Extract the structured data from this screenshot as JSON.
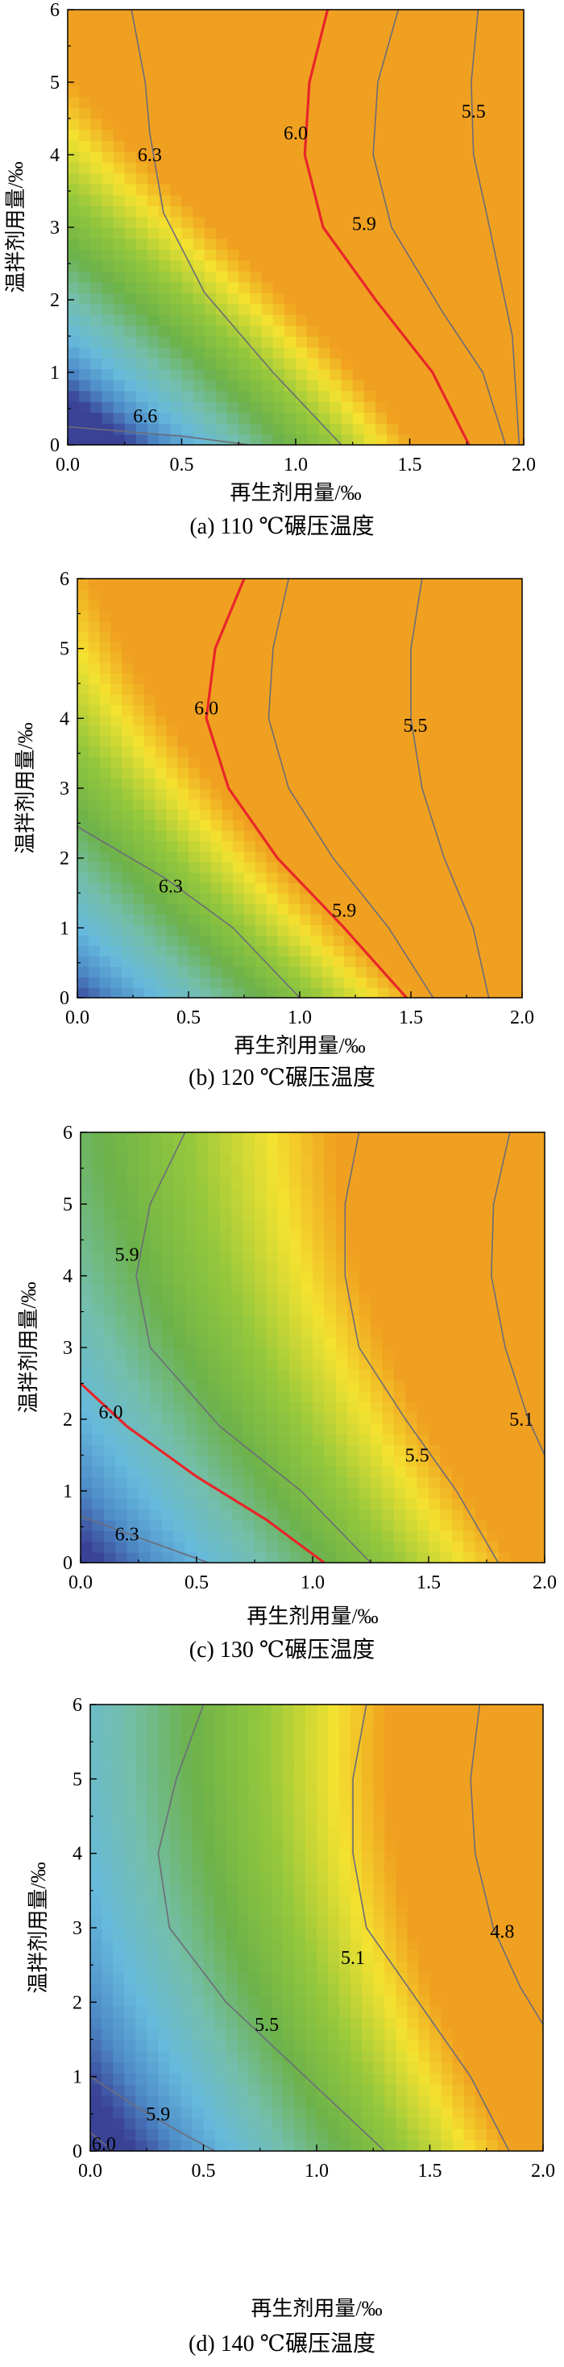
{
  "chart_data": [
    {
      "type": "contour",
      "title": "(a) 110 ℃碾压温度",
      "xlabel": "再生剂用量/‰",
      "ylabel": "温拌剂用量/‰",
      "xlim": [
        0,
        2
      ],
      "ylim": [
        0,
        6
      ],
      "xticks": [
        "0.0",
        "0.5",
        "1.0",
        "1.5",
        "2.0"
      ],
      "yticks": [
        "0",
        "1",
        "2",
        "3",
        "4",
        "5",
        "6"
      ],
      "value_range": [
        5.4,
        6.85
      ],
      "highlight_level": "6.0",
      "contours": [
        {
          "level": "6.6",
          "points": [
            [
              0.0,
              0.25
            ],
            [
              0.5,
              0.12
            ],
            [
              0.8,
              0.0
            ]
          ],
          "label_at": [
            0.34,
            0.4
          ]
        },
        {
          "level": "6.3",
          "points": [
            [
              0.28,
              6.0
            ],
            [
              0.34,
              5.0
            ],
            [
              0.36,
              4.3
            ],
            [
              0.42,
              3.2
            ],
            [
              0.6,
              2.1
            ],
            [
              0.9,
              1.0
            ],
            [
              1.2,
              0.0
            ]
          ],
          "label_at": [
            0.36,
            4.0
          ]
        },
        {
          "level": "6.0",
          "points": [
            [
              1.14,
              6.0
            ],
            [
              1.06,
              5.0
            ],
            [
              1.04,
              4.0
            ],
            [
              1.12,
              3.0
            ],
            [
              1.35,
              2.0
            ],
            [
              1.6,
              1.0
            ],
            [
              1.76,
              0.0
            ]
          ],
          "label_at": [
            1.0,
            4.3
          ]
        },
        {
          "level": "5.9",
          "points": [
            [
              1.45,
              6.0
            ],
            [
              1.36,
              5.0
            ],
            [
              1.34,
              4.0
            ],
            [
              1.42,
              3.0
            ],
            [
              1.65,
              1.8
            ],
            [
              1.82,
              1.0
            ],
            [
              1.92,
              0.0
            ]
          ],
          "label_at": [
            1.3,
            3.05
          ]
        },
        {
          "level": "5.5",
          "points": [
            [
              1.8,
              6.0
            ],
            [
              1.77,
              5.0
            ],
            [
              1.78,
              4.0
            ],
            [
              1.85,
              3.0
            ],
            [
              1.95,
              1.5
            ],
            [
              1.98,
              0.0
            ]
          ],
          "label_at": [
            1.78,
            4.6
          ]
        }
      ]
    },
    {
      "type": "contour",
      "title": "(b) 120 ℃碾压温度",
      "xlabel": "再生剂用量/‰",
      "ylabel": "温拌剂用量/‰",
      "xlim": [
        0,
        2
      ],
      "ylim": [
        0,
        6
      ],
      "xticks": [
        "0.0",
        "0.5",
        "1.0",
        "1.5",
        "2.0"
      ],
      "yticks": [
        "0",
        "1",
        "2",
        "3",
        "4",
        "5",
        "6"
      ],
      "value_range": [
        5.4,
        6.85
      ],
      "highlight_level": "6.0",
      "contours": [
        {
          "level": "6.3",
          "points": [
            [
              0.0,
              2.45
            ],
            [
              0.4,
              1.7
            ],
            [
              0.7,
              1.0
            ],
            [
              1.0,
              0.0
            ]
          ],
          "label_at": [
            0.42,
            1.6
          ]
        },
        {
          "level": "6.0",
          "points": [
            [
              0.75,
              6.0
            ],
            [
              0.62,
              5.0
            ],
            [
              0.58,
              4.0
            ],
            [
              0.68,
              3.0
            ],
            [
              0.9,
              2.0
            ],
            [
              1.2,
              1.0
            ],
            [
              1.48,
              0.0
            ]
          ],
          "label_at": [
            0.58,
            4.15
          ]
        },
        {
          "level": "5.9",
          "points": [
            [
              0.95,
              6.0
            ],
            [
              0.88,
              5.0
            ],
            [
              0.86,
              4.0
            ],
            [
              0.95,
              3.0
            ],
            [
              1.15,
              2.0
            ],
            [
              1.4,
              1.0
            ],
            [
              1.6,
              0.0
            ]
          ],
          "label_at": [
            1.2,
            1.25
          ]
        },
        {
          "level": "5.5",
          "points": [
            [
              1.55,
              6.0
            ],
            [
              1.5,
              5.0
            ],
            [
              1.5,
              4.0
            ],
            [
              1.55,
              3.0
            ],
            [
              1.65,
              2.0
            ],
            [
              1.78,
              1.0
            ],
            [
              1.85,
              0.0
            ]
          ],
          "label_at": [
            1.52,
            3.9
          ]
        }
      ]
    },
    {
      "type": "contour",
      "title": "(c) 130 ℃碾压温度",
      "xlabel": "再生剂用量/‰",
      "ylabel": "温拌剂用量/‰",
      "xlim": [
        0,
        2
      ],
      "ylim": [
        0,
        6
      ],
      "xticks": [
        "0.0",
        "0.5",
        "1.0",
        "1.5",
        "2.0"
      ],
      "yticks": [
        "0",
        "1",
        "2",
        "3",
        "4",
        "5",
        "6"
      ],
      "value_range": [
        5.0,
        6.6
      ],
      "highlight_level": "6.0",
      "contours": [
        {
          "level": "6.3",
          "points": [
            [
              0.0,
              0.65
            ],
            [
              0.25,
              0.35
            ],
            [
              0.55,
              0.0
            ]
          ],
          "label_at": [
            0.2,
            0.4
          ]
        },
        {
          "level": "6.0",
          "points": [
            [
              0.0,
              2.5
            ],
            [
              0.2,
              1.9
            ],
            [
              0.5,
              1.2
            ],
            [
              0.8,
              0.6
            ],
            [
              1.05,
              0.0
            ]
          ],
          "label_at": [
            0.13,
            2.1
          ]
        },
        {
          "level": "5.9",
          "points": [
            [
              0.45,
              6.0
            ],
            [
              0.3,
              5.0
            ],
            [
              0.24,
              4.0
            ],
            [
              0.3,
              3.0
            ],
            [
              0.6,
              1.9
            ],
            [
              0.95,
              1.0
            ],
            [
              1.25,
              0.0
            ]
          ],
          "label_at": [
            0.2,
            4.3
          ]
        },
        {
          "level": "5.5",
          "points": [
            [
              1.2,
              6.0
            ],
            [
              1.14,
              5.0
            ],
            [
              1.14,
              4.0
            ],
            [
              1.2,
              3.0
            ],
            [
              1.4,
              2.0
            ],
            [
              1.62,
              1.0
            ],
            [
              1.8,
              0.0
            ]
          ],
          "label_at": [
            1.45,
            1.5
          ]
        },
        {
          "level": "5.1",
          "points": [
            [
              1.85,
              6.0
            ],
            [
              1.78,
              5.0
            ],
            [
              1.77,
              4.0
            ],
            [
              1.83,
              3.0
            ],
            [
              1.93,
              2.0
            ],
            [
              2.0,
              1.5
            ]
          ],
          "label_at": [
            1.9,
            2.0
          ]
        }
      ]
    },
    {
      "type": "contour",
      "title": "(d) 140 ℃碾压温度",
      "xlabel": "再生剂用量/‰",
      "ylabel": "温拌剂用量/‰",
      "xlim": [
        0,
        2
      ],
      "ylim": [
        0,
        6
      ],
      "xticks": [
        "0.0",
        "0.5",
        "1.0",
        "1.5",
        "2.0"
      ],
      "yticks": [
        "0",
        "1",
        "2",
        "3",
        "4",
        "5",
        "6"
      ],
      "value_range": [
        4.6,
        6.1
      ],
      "highlight_level": "",
      "contours": [
        {
          "level": "6.0",
          "points": [
            [
              0.0,
              0.25
            ],
            [
              0.1,
              0.0
            ]
          ],
          "label_at": [
            0.06,
            0.1
          ]
        },
        {
          "level": "5.9",
          "points": [
            [
              0.0,
              1.0
            ],
            [
              0.2,
              0.6
            ],
            [
              0.4,
              0.25
            ],
            [
              0.55,
              0.0
            ]
          ],
          "label_at": [
            0.3,
            0.5
          ]
        },
        {
          "level": "5.5",
          "points": [
            [
              0.5,
              6.0
            ],
            [
              0.38,
              5.0
            ],
            [
              0.3,
              4.0
            ],
            [
              0.35,
              3.0
            ],
            [
              0.6,
              2.0
            ],
            [
              0.95,
              1.0
            ],
            [
              1.3,
              0.0
            ]
          ],
          "label_at": [
            0.78,
            1.7
          ]
        },
        {
          "level": "5.1",
          "points": [
            [
              1.22,
              6.0
            ],
            [
              1.16,
              5.0
            ],
            [
              1.16,
              4.0
            ],
            [
              1.22,
              3.0
            ],
            [
              1.45,
              2.0
            ],
            [
              1.68,
              1.0
            ],
            [
              1.85,
              0.0
            ]
          ],
          "label_at": [
            1.16,
            2.6
          ]
        },
        {
          "level": "4.8",
          "points": [
            [
              1.72,
              6.0
            ],
            [
              1.68,
              5.0
            ],
            [
              1.7,
              4.0
            ],
            [
              1.78,
              3.0
            ],
            [
              1.9,
              2.2
            ],
            [
              2.0,
              1.7
            ]
          ],
          "label_at": [
            1.82,
            2.95
          ]
        }
      ]
    }
  ],
  "layout": {
    "x_tick_values": [
      0,
      0.5,
      1.0,
      1.5,
      2.0
    ],
    "y_tick_values": [
      0,
      1,
      2,
      3,
      4,
      5,
      6
    ]
  }
}
